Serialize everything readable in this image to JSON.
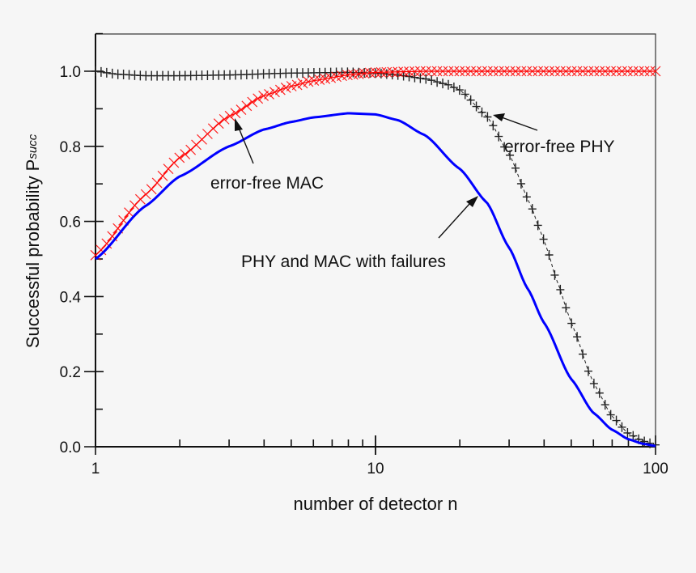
{
  "chart_data": {
    "type": "line",
    "title": "",
    "xlabel": "number of detector n",
    "ylabel": "Successful probability P",
    "ylabel_subscript": "succ",
    "xscale": "log",
    "xlim": [
      1,
      100
    ],
    "ylim": [
      0.0,
      1.1
    ],
    "x_ticks": [
      "1",
      "10",
      "100"
    ],
    "y_ticks": [
      "0.0",
      "0.2",
      "0.4",
      "0.6",
      "0.8",
      "1.0"
    ],
    "grid": false,
    "legend": "none (inline annotations)",
    "series": [
      {
        "name": "PHY and MAC with failures",
        "color": "#0000ff",
        "style": "solid line",
        "x": [
          1,
          1.5,
          2,
          3,
          4,
          5,
          6,
          8,
          10,
          12,
          15,
          20,
          25,
          30,
          35,
          40,
          50,
          60,
          70,
          80,
          90,
          100
        ],
        "values": [
          0.5,
          0.64,
          0.72,
          0.8,
          0.845,
          0.865,
          0.877,
          0.888,
          0.885,
          0.87,
          0.83,
          0.74,
          0.65,
          0.53,
          0.42,
          0.33,
          0.18,
          0.09,
          0.045,
          0.02,
          0.008,
          0.002
        ]
      },
      {
        "name": "error-free MAC",
        "color": "#ff0000",
        "style": "x markers",
        "x": [
          1,
          1.5,
          2,
          3,
          4,
          5,
          6,
          8,
          10,
          15,
          20,
          30,
          50,
          100
        ],
        "values": [
          0.51,
          0.67,
          0.77,
          0.88,
          0.935,
          0.96,
          0.975,
          0.99,
          0.997,
          1.0,
          1.0,
          1.0,
          1.0,
          1.0
        ]
      },
      {
        "name": "error-free PHY",
        "color": "#222222",
        "style": "+ markers, dashed line",
        "x": [
          1,
          1.2,
          1.5,
          2,
          3,
          5,
          8,
          10,
          12,
          15,
          18,
          20,
          25,
          30,
          35,
          40,
          45,
          50,
          60,
          70,
          80,
          90,
          100
        ],
        "values": [
          1.0,
          0.992,
          0.988,
          0.988,
          0.99,
          0.995,
          0.997,
          0.995,
          0.99,
          0.98,
          0.965,
          0.95,
          0.88,
          0.78,
          0.66,
          0.55,
          0.43,
          0.33,
          0.17,
          0.08,
          0.035,
          0.015,
          0.005
        ]
      }
    ],
    "annotations": [
      {
        "text": "error-free MAC",
        "arrow_to": "red curve near n≈3"
      },
      {
        "text": "error-free PHY",
        "arrow_to": "black curve near n≈26"
      },
      {
        "text": "PHY and MAC with failures",
        "arrow_to": "blue curve near n≈24"
      }
    ]
  }
}
